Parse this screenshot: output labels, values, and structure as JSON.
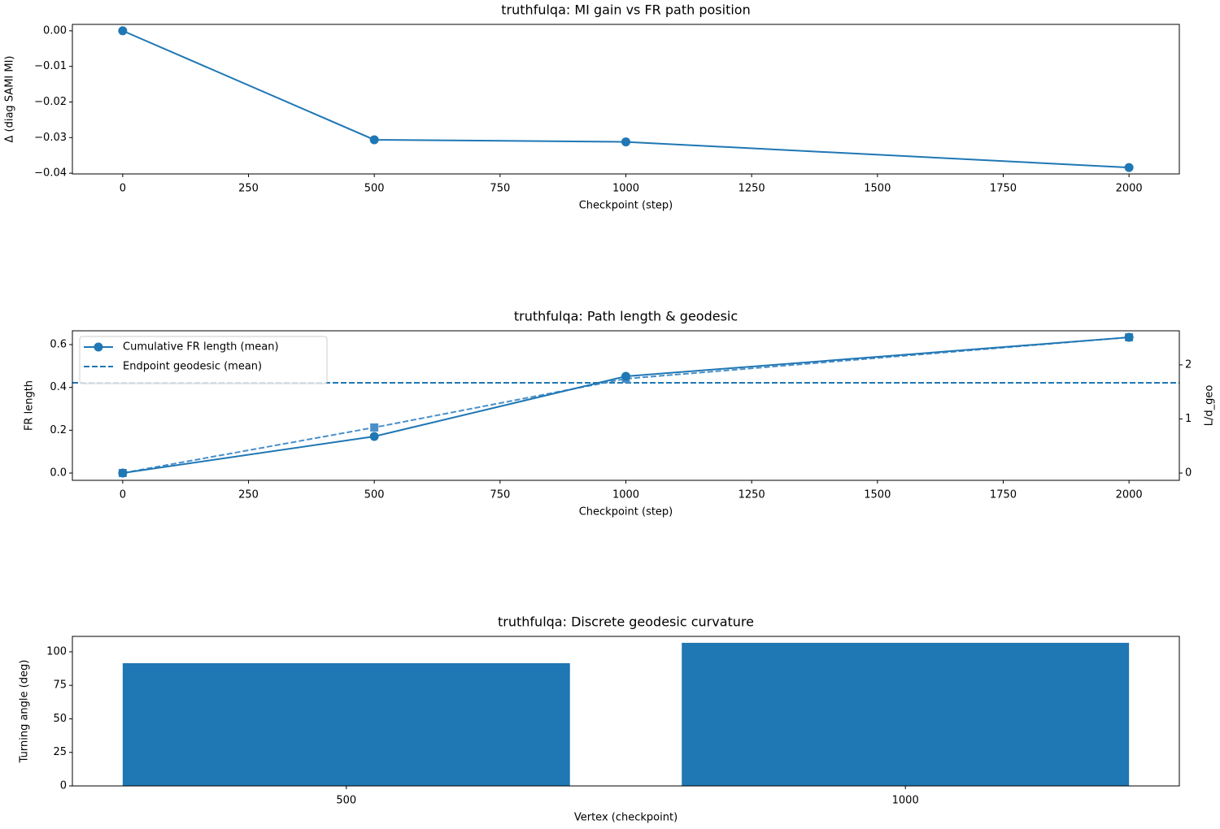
{
  "chart_data": [
    {
      "type": "line",
      "title": "truthfulqa: MI gain vs FR path position",
      "xlabel": "Checkpoint (step)",
      "ylabel": "Δ (diag SAMI MI)",
      "x": [
        0,
        500,
        1000,
        2000
      ],
      "series": [
        {
          "color": "#1f77b4",
          "marker": "circle",
          "values": [
            0,
            -0.0306,
            -0.0312,
            -0.0384
          ]
        }
      ],
      "xlim": [
        -100,
        2100
      ],
      "xticks": [
        0,
        250,
        500,
        750,
        1000,
        1250,
        1500,
        1750,
        2000
      ],
      "ylim": [
        -0.0402,
        0.0018
      ],
      "yticks": [
        {
          "value": -0.04,
          "label": "−0.04"
        },
        {
          "value": -0.03,
          "label": "−0.03"
        },
        {
          "value": -0.02,
          "label": "−0.02"
        },
        {
          "value": -0.01,
          "label": "−0.01"
        },
        {
          "value": 0,
          "label": "0.00"
        }
      ]
    },
    {
      "type": "line",
      "title": "truthfulqa: Path length & geodesic",
      "xlabel": "Checkpoint (step)",
      "ylabel": "FR length",
      "y2label": "L/d_geo",
      "x": [
        0,
        500,
        1000,
        2000
      ],
      "series": [
        {
          "name": "Cumulative FR length (mean)",
          "color": "#1f77b4",
          "marker": "circle",
          "linestyle": "solid",
          "values": [
            0,
            0.171,
            0.452,
            0.634
          ]
        },
        {
          "color": "#4a8fc8",
          "marker": "square",
          "linestyle": "dashed",
          "axis": "y2",
          "values": [
            0,
            0.842,
            1.744,
            2.51
          ]
        }
      ],
      "hlines": [
        {
          "name": "Endpoint geodesic (mean)",
          "color": "#1f77b4",
          "linestyle": "dashed",
          "value": 0.4215
        }
      ],
      "legend": "upper left",
      "xlim": [
        -100,
        2100
      ],
      "xticks": [
        0,
        250,
        500,
        750,
        1000,
        1250,
        1500,
        1750,
        2000
      ],
      "ylim": [
        -0.034,
        0.6646
      ],
      "yticks": [
        {
          "value": 0,
          "label": "0.0"
        },
        {
          "value": 0.2,
          "label": "0.2"
        },
        {
          "value": 0.4,
          "label": "0.4"
        },
        {
          "value": 0.6,
          "label": "0.6"
        }
      ],
      "y2lim": [
        -0.135,
        2.63
      ],
      "y2ticks": [
        0,
        1,
        2
      ]
    },
    {
      "type": "bar",
      "title": "truthfulqa: Discrete geodesic curvature",
      "xlabel": "Vertex (checkpoint)",
      "ylabel": "Turning angle (deg)",
      "categories": [
        "500",
        "1000"
      ],
      "values": [
        91.5,
        106.7
      ],
      "color": "#1f77b4",
      "ylim": [
        0,
        111.5
      ],
      "yticks": [
        0,
        25,
        50,
        75,
        100
      ]
    }
  ]
}
